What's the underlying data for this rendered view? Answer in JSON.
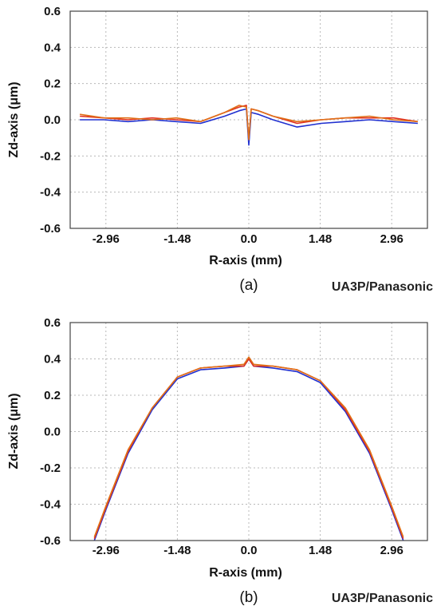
{
  "chart_data": [
    {
      "type": "line",
      "panel_label": "(a)",
      "brand": "UA3P/Panasonic",
      "xlabel": "R-axis (mm)",
      "ylabel": "Zd-axis (μm)",
      "xlim": [
        -3.7,
        3.7
      ],
      "ylim": [
        -0.6,
        0.6
      ],
      "xticks": [
        -2.96,
        -1.48,
        0.0,
        1.48,
        2.96
      ],
      "xtick_labels": [
        "-2.96",
        "-1.48",
        "0.0",
        "1.48",
        "2.96"
      ],
      "yticks": [
        0.6,
        0.4,
        0.2,
        0.0,
        -0.2,
        -0.4,
        -0.6
      ],
      "ytick_labels": [
        "0.6",
        "0.4",
        "0.2",
        "0.0",
        "-0.2",
        "-0.4",
        "-0.6"
      ],
      "grid": true,
      "series": [
        {
          "color": "#e03020",
          "x": [
            -3.5,
            -3.0,
            -2.5,
            -2.0,
            -1.5,
            -1.0,
            -0.5,
            -0.2,
            -0.05,
            0.0,
            0.05,
            0.2,
            0.5,
            1.0,
            1.5,
            2.0,
            2.5,
            3.0,
            3.5
          ],
          "y": [
            0.02,
            0.01,
            0.0,
            0.01,
            0.0,
            -0.01,
            0.04,
            0.07,
            0.08,
            -0.12,
            0.06,
            0.05,
            0.02,
            -0.02,
            0.0,
            0.01,
            0.01,
            0.01,
            -0.01
          ]
        },
        {
          "color": "#2030d0",
          "x": [
            -3.5,
            -3.0,
            -2.5,
            -2.0,
            -1.5,
            -1.0,
            -0.5,
            -0.2,
            -0.05,
            0.0,
            0.05,
            0.2,
            0.5,
            1.0,
            1.5,
            2.0,
            2.5,
            3.0,
            3.5
          ],
          "y": [
            0.0,
            0.0,
            -0.01,
            0.0,
            -0.01,
            -0.02,
            0.02,
            0.05,
            0.06,
            -0.14,
            0.04,
            0.03,
            0.0,
            -0.04,
            -0.02,
            -0.01,
            0.0,
            -0.01,
            -0.02
          ]
        },
        {
          "color": "#e07018",
          "x": [
            -3.5,
            -3.0,
            -2.5,
            -2.0,
            -1.5,
            -1.0,
            -0.5,
            -0.2,
            -0.05,
            0.0,
            0.05,
            0.2,
            0.5,
            1.0,
            1.5,
            2.0,
            2.5,
            3.0,
            3.5
          ],
          "y": [
            0.03,
            0.01,
            0.01,
            0.0,
            0.01,
            -0.01,
            0.04,
            0.08,
            0.07,
            -0.11,
            0.06,
            0.05,
            0.02,
            -0.01,
            0.0,
            0.01,
            0.02,
            0.0,
            -0.01
          ]
        }
      ]
    },
    {
      "type": "line",
      "panel_label": "(b)",
      "brand": "UA3P/Panasonic",
      "xlabel": "R-axis (mm)",
      "ylabel": "Zd-axis (μm)",
      "xlim": [
        -3.7,
        3.7
      ],
      "ylim": [
        -0.6,
        0.6
      ],
      "xticks": [
        -2.96,
        -1.48,
        0.0,
        1.48,
        2.96
      ],
      "xtick_labels": [
        "-2.96",
        "-1.48",
        "0.0",
        "1.48",
        "2.96"
      ],
      "yticks": [
        0.6,
        0.4,
        0.2,
        0.0,
        -0.2,
        -0.4,
        -0.6
      ],
      "ytick_labels": [
        "0.6",
        "0.4",
        "0.2",
        "0.0",
        "-0.2",
        "-0.4",
        "-0.6"
      ],
      "grid": true,
      "series": [
        {
          "color": "#2030d0",
          "x": [
            -3.2,
            -2.96,
            -2.5,
            -2.0,
            -1.48,
            -1.0,
            -0.5,
            -0.1,
            0.0,
            0.1,
            0.5,
            1.0,
            1.48,
            2.0,
            2.5,
            2.96,
            3.2
          ],
          "y": [
            -0.6,
            -0.43,
            -0.12,
            0.12,
            0.29,
            0.34,
            0.35,
            0.36,
            0.4,
            0.36,
            0.35,
            0.33,
            0.27,
            0.11,
            -0.12,
            -0.43,
            -0.6
          ]
        },
        {
          "color": "#e03020",
          "x": [
            -3.2,
            -2.96,
            -2.5,
            -2.0,
            -1.48,
            -1.0,
            -0.5,
            -0.1,
            0.0,
            0.1,
            0.5,
            1.0,
            1.48,
            2.0,
            2.5,
            2.96,
            3.2
          ],
          "y": [
            -0.59,
            -0.42,
            -0.11,
            0.13,
            0.3,
            0.35,
            0.36,
            0.36,
            0.4,
            0.36,
            0.36,
            0.34,
            0.28,
            0.12,
            -0.11,
            -0.42,
            -0.59
          ]
        },
        {
          "color": "#e07018",
          "x": [
            -3.2,
            -2.96,
            -2.5,
            -2.0,
            -1.48,
            -1.0,
            -0.5,
            -0.1,
            0.0,
            0.1,
            0.5,
            1.0,
            1.48,
            2.0,
            2.5,
            2.96,
            3.2
          ],
          "y": [
            -0.58,
            -0.41,
            -0.1,
            0.13,
            0.3,
            0.35,
            0.36,
            0.37,
            0.41,
            0.37,
            0.36,
            0.34,
            0.28,
            0.13,
            -0.1,
            -0.41,
            -0.58
          ]
        }
      ]
    }
  ]
}
